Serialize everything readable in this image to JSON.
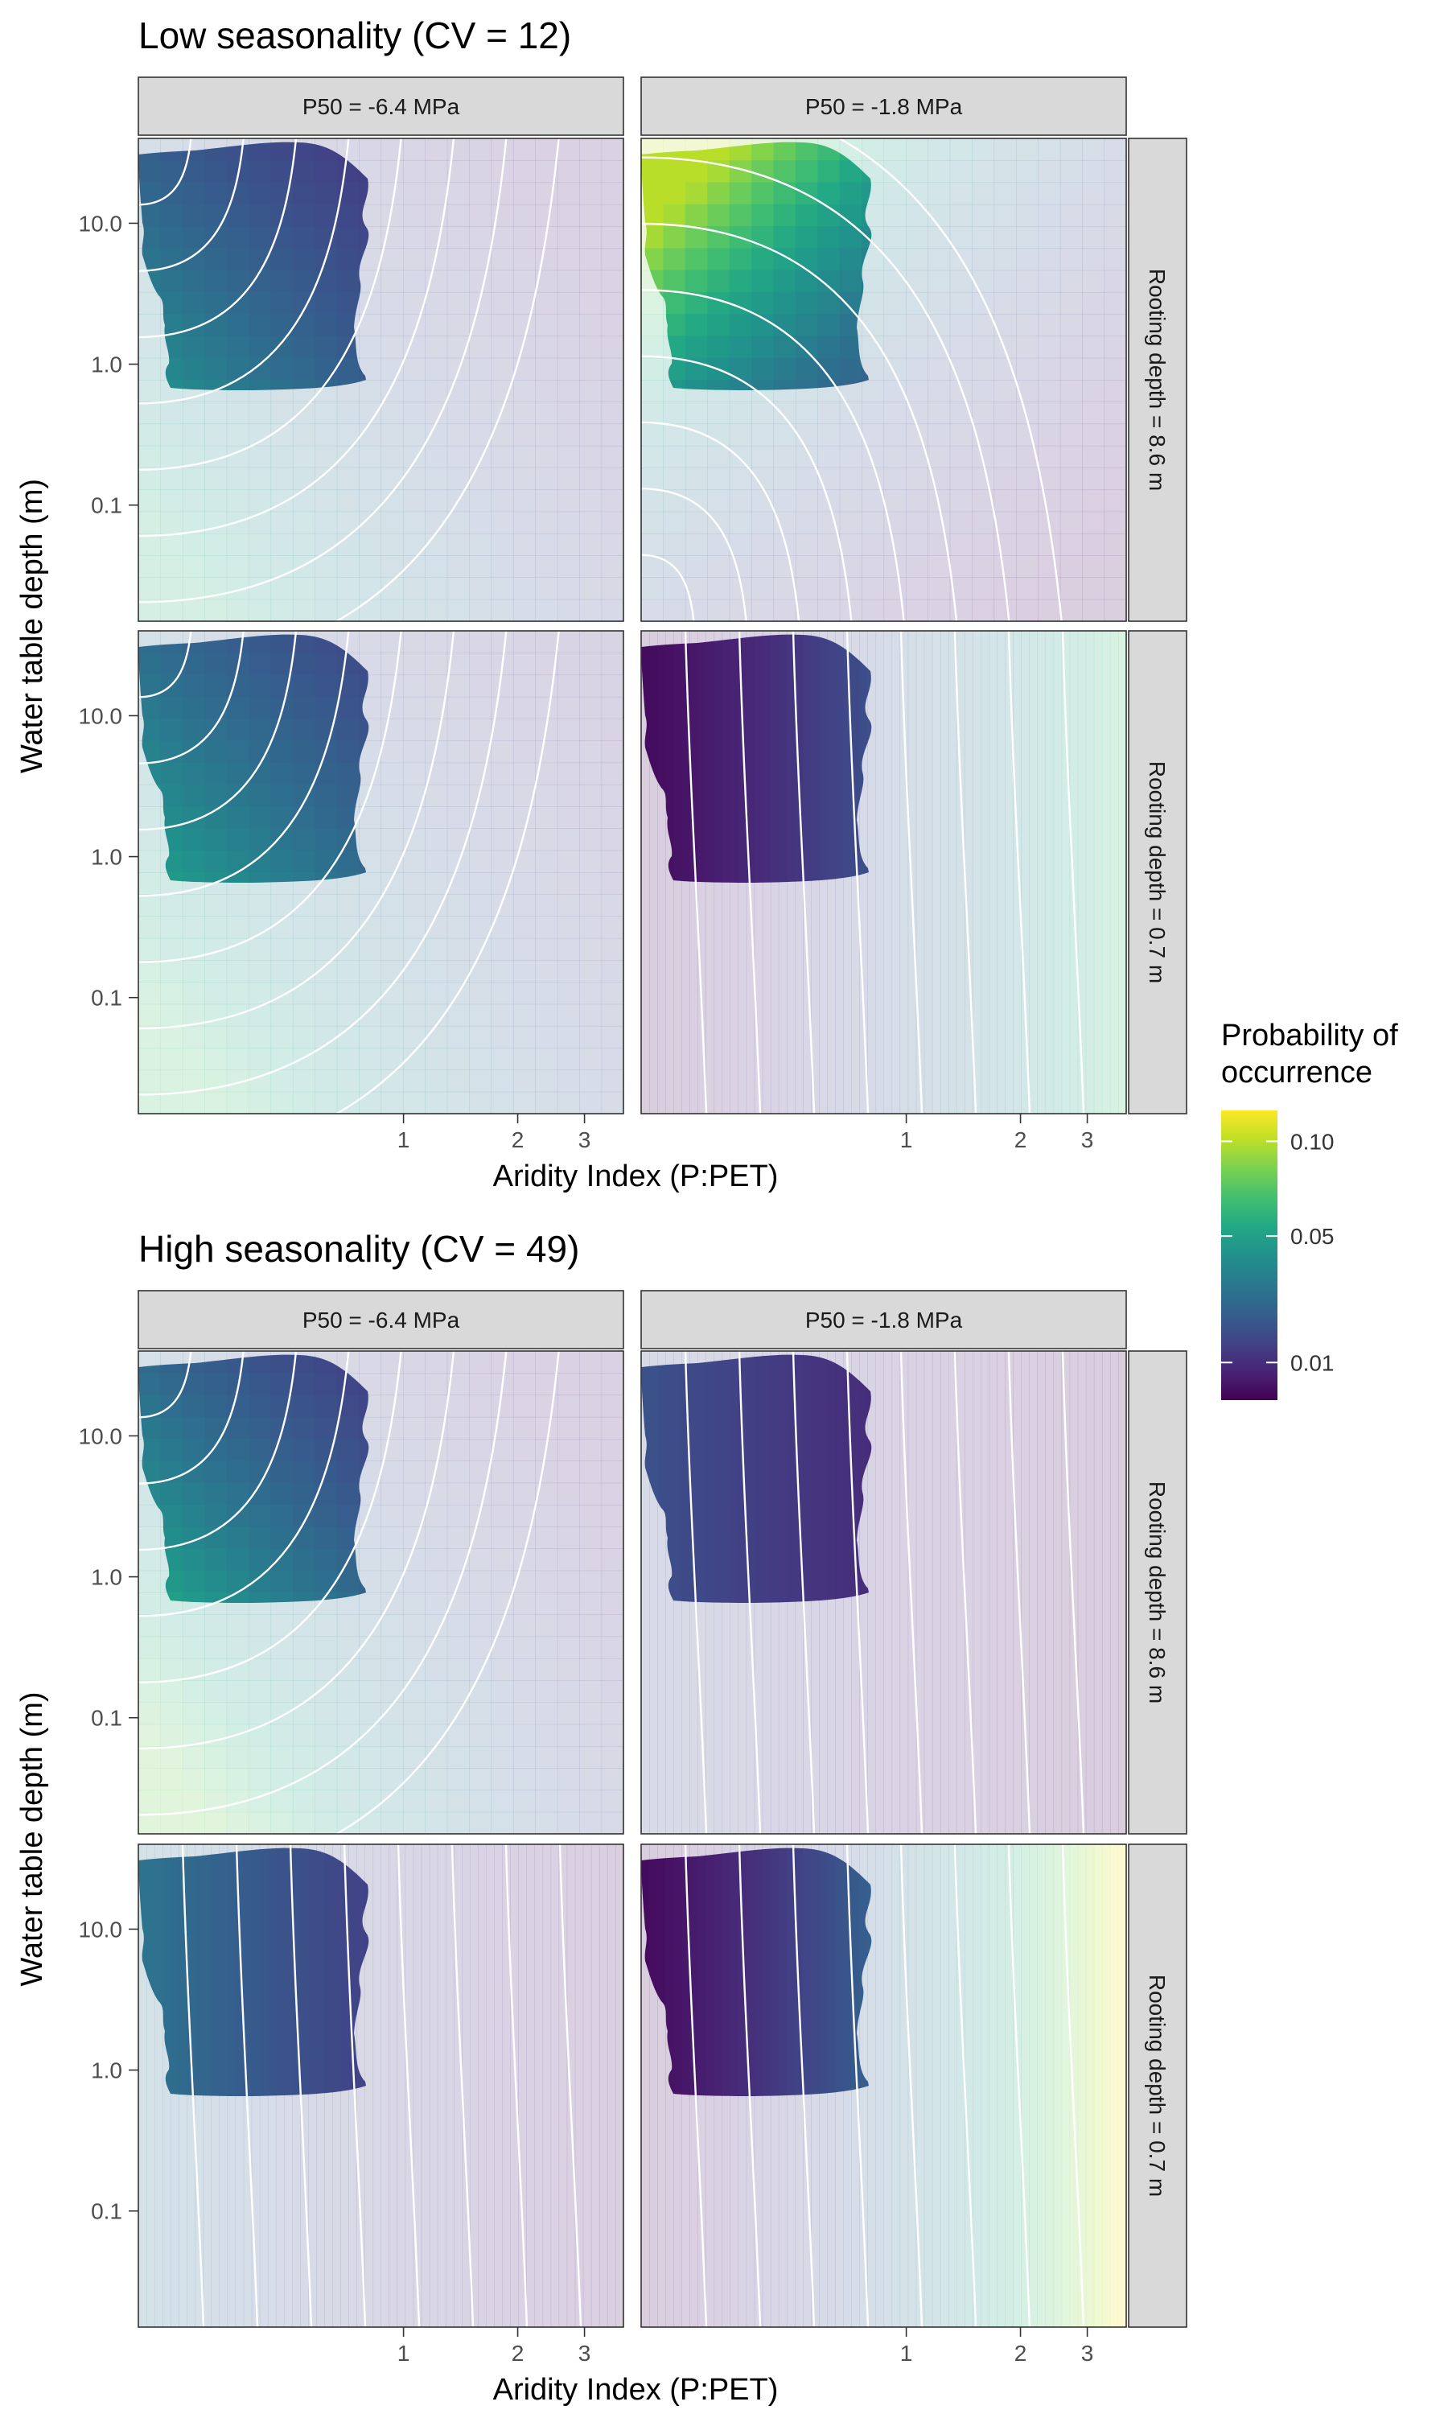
{
  "figure": {
    "ylabel": "Water table depth (m)",
    "xlabel": "Aridity Index (P:PET)",
    "legend": {
      "title_lines": [
        "Probability of",
        "occurrence"
      ],
      "ticks": [
        "0.10",
        "0.05",
        "0.01"
      ],
      "tick_values": [
        0.1,
        0.05,
        0.01
      ],
      "range": [
        0.004,
        0.12
      ],
      "placement": "right"
    },
    "column_strips": [
      "P50 = -6.4 MPa",
      "P50 = -1.8 MPa"
    ],
    "row_strips": [
      "Rooting depth = 8.6 m",
      "Rooting depth = 0.7 m"
    ],
    "y_ticks": [
      "10.0",
      "1.0",
      "0.1"
    ],
    "x_ticks": [
      "1",
      "2",
      "3"
    ]
  },
  "chart_data": [
    {
      "type": "heatmap",
      "title": "Low seasonality (CV = 12)",
      "xlabel": "Aridity Index (P:PET)",
      "ylabel": "Water table depth (m)",
      "x_scale": "log",
      "y_scale": "log",
      "xlim": [
        0.2,
        3.8
      ],
      "ylim": [
        0.015,
        40
      ],
      "x_ticks": [
        1,
        2,
        3
      ],
      "y_ticks": [
        10.0,
        1.0,
        0.1
      ],
      "fill": "Probability of occurrence",
      "facets": [
        {
          "column": "P50 = -6.4 MPa",
          "row": "Rooting depth = 8.6 m",
          "max_probability": 0.06,
          "min_probability": 0.008,
          "high_region": "low aridity, deep water table"
        },
        {
          "column": "P50 = -1.8 MPa",
          "row": "Rooting depth = 8.6 m",
          "max_probability": 0.1,
          "min_probability": 0.006,
          "high_region": "low aridity, shallow water table"
        },
        {
          "column": "P50 = -6.4 MPa",
          "row": "Rooting depth = 0.7 m",
          "max_probability": 0.07,
          "min_probability": 0.01,
          "high_region": "low aridity, deep water table"
        },
        {
          "column": "P50 = -1.8 MPa",
          "row": "Rooting depth = 0.7 m",
          "max_probability": 0.07,
          "min_probability": 0.005,
          "high_region": "high aridity index"
        }
      ]
    },
    {
      "type": "heatmap",
      "title": "High seasonality (CV = 49)",
      "xlabel": "Aridity Index (P:PET)",
      "ylabel": "Water table depth (m)",
      "x_scale": "log",
      "y_scale": "log",
      "xlim": [
        0.2,
        3.8
      ],
      "ylim": [
        0.015,
        40
      ],
      "x_ticks": [
        1,
        2,
        3
      ],
      "y_ticks": [
        10.0,
        1.0,
        0.1
      ],
      "fill": "Probability of occurrence",
      "facets": [
        {
          "column": "P50 = -6.4 MPa",
          "row": "Rooting depth = 8.6 m",
          "max_probability": 0.08,
          "min_probability": 0.008,
          "high_region": "low aridity, deep water table"
        },
        {
          "column": "P50 = -1.8 MPa",
          "row": "Rooting depth = 8.6 m",
          "max_probability": 0.018,
          "min_probability": 0.005,
          "high_region": "low aridity index"
        },
        {
          "column": "P50 = -6.4 MPa",
          "row": "Rooting depth = 0.7 m",
          "max_probability": 0.03,
          "min_probability": 0.006,
          "high_region": "low aridity index"
        },
        {
          "column": "P50 = -1.8 MPa",
          "row": "Rooting depth = 0.7 m",
          "max_probability": 0.12,
          "min_probability": 0.005,
          "high_region": "high aridity index"
        }
      ]
    }
  ]
}
